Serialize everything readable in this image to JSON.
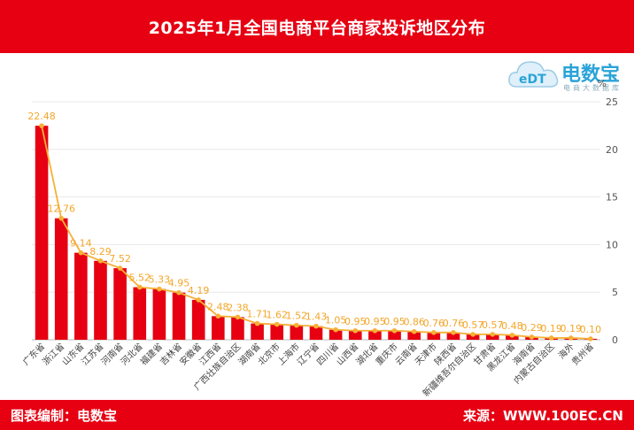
{
  "header": {
    "title": "2025年1月全国电商平台商家投诉地区分布"
  },
  "logo": {
    "brand": "电数宝",
    "cloud_letters": "eDT",
    "subtitle": "电商大数据库"
  },
  "footer": {
    "left": "图表编制：电数宝",
    "right": "来源：WWW.100EC.CN"
  },
  "colors": {
    "header": "#e60012",
    "bar": "#e60012",
    "line": "#f6b037",
    "label": "#f4a62a"
  },
  "chart_data": {
    "type": "bar",
    "title": "2025年1月全国电商平台商家投诉地区分布",
    "unit": "%",
    "ylim": [
      0,
      25
    ],
    "yticks": [
      0,
      5,
      10,
      15,
      20,
      25
    ],
    "grid": true,
    "overlay_line": true,
    "categories": [
      "广东省",
      "浙江省",
      "山东省",
      "江苏省",
      "河南省",
      "河北省",
      "福建省",
      "吉林省",
      "安徽省",
      "江西省",
      "广西壮族自治区",
      "湖南省",
      "北京市",
      "上海市",
      "辽宁省",
      "四川省",
      "山西省",
      "湖北省",
      "重庆市",
      "云南省",
      "天津市",
      "陕西省",
      "新疆维吾尔自治区",
      "甘肃省",
      "黑龙江省",
      "海南省",
      "内蒙古自治区",
      "海外",
      "贵州省"
    ],
    "values": [
      22.48,
      12.76,
      9.14,
      8.29,
      7.52,
      5.52,
      5.33,
      4.95,
      4.19,
      2.48,
      2.38,
      1.71,
      1.62,
      1.52,
      1.43,
      1.05,
      0.95,
      0.95,
      0.95,
      0.86,
      0.76,
      0.76,
      0.57,
      0.57,
      0.48,
      0.29,
      0.19,
      0.19,
      0.1
    ],
    "value_labels": [
      "22.48",
      "12.76",
      "9.14",
      "8.29",
      "7.52",
      "5.52",
      "5.33",
      "4.95",
      "4.19",
      "2.48",
      "2.38",
      "1.71",
      "1.62",
      "1.52",
      "1.43",
      "1.05",
      "0.95",
      "0.95",
      "0.95",
      "0.86",
      "0.76",
      "0.76",
      "0.57",
      "0.57",
      "0.48",
      "0.29",
      "0.19",
      "0.19",
      "0.10"
    ]
  }
}
